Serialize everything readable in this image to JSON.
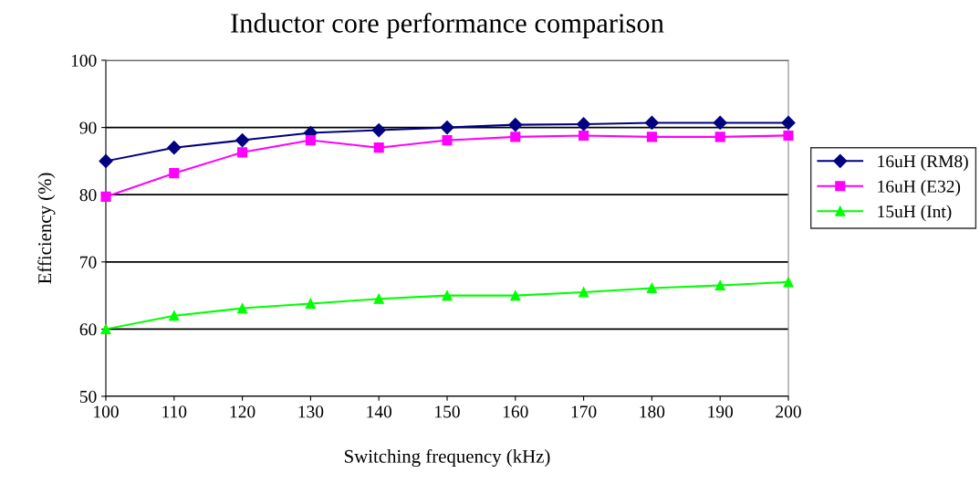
{
  "chart_data": {
    "type": "line",
    "title": "Inductor core performance comparison",
    "xlabel": "Switching frequency (kHz)",
    "ylabel": "Efficiency (%)",
    "x": [
      100,
      110,
      120,
      130,
      140,
      150,
      160,
      170,
      180,
      190,
      200
    ],
    "series": [
      {
        "name": "16uH (RM8)",
        "color": "#000080",
        "marker": "diamond",
        "values": [
          85.0,
          87.0,
          88.1,
          89.2,
          89.6,
          90.0,
          90.4,
          90.5,
          90.7,
          90.7,
          90.7
        ]
      },
      {
        "name": "16uH (E32)",
        "color": "#ff00ff",
        "marker": "square",
        "values": [
          79.7,
          83.2,
          86.3,
          88.1,
          87.0,
          88.1,
          88.6,
          88.8,
          88.6,
          88.6,
          88.8
        ]
      },
      {
        "name": "15uH (Int)",
        "color": "#00ff00",
        "marker": "triangle",
        "values": [
          60.0,
          62.0,
          63.1,
          63.8,
          64.5,
          65.0,
          65.0,
          65.5,
          66.1,
          66.5,
          67.0
        ]
      }
    ],
    "xlim": [
      100,
      200
    ],
    "xticks": [
      100,
      110,
      120,
      130,
      140,
      150,
      160,
      170,
      180,
      190,
      200
    ],
    "ylim": [
      50,
      100
    ],
    "yticks": [
      50,
      60,
      70,
      80,
      90,
      100
    ],
    "grid": "y",
    "legend": "right",
    "line_style": "solid"
  }
}
